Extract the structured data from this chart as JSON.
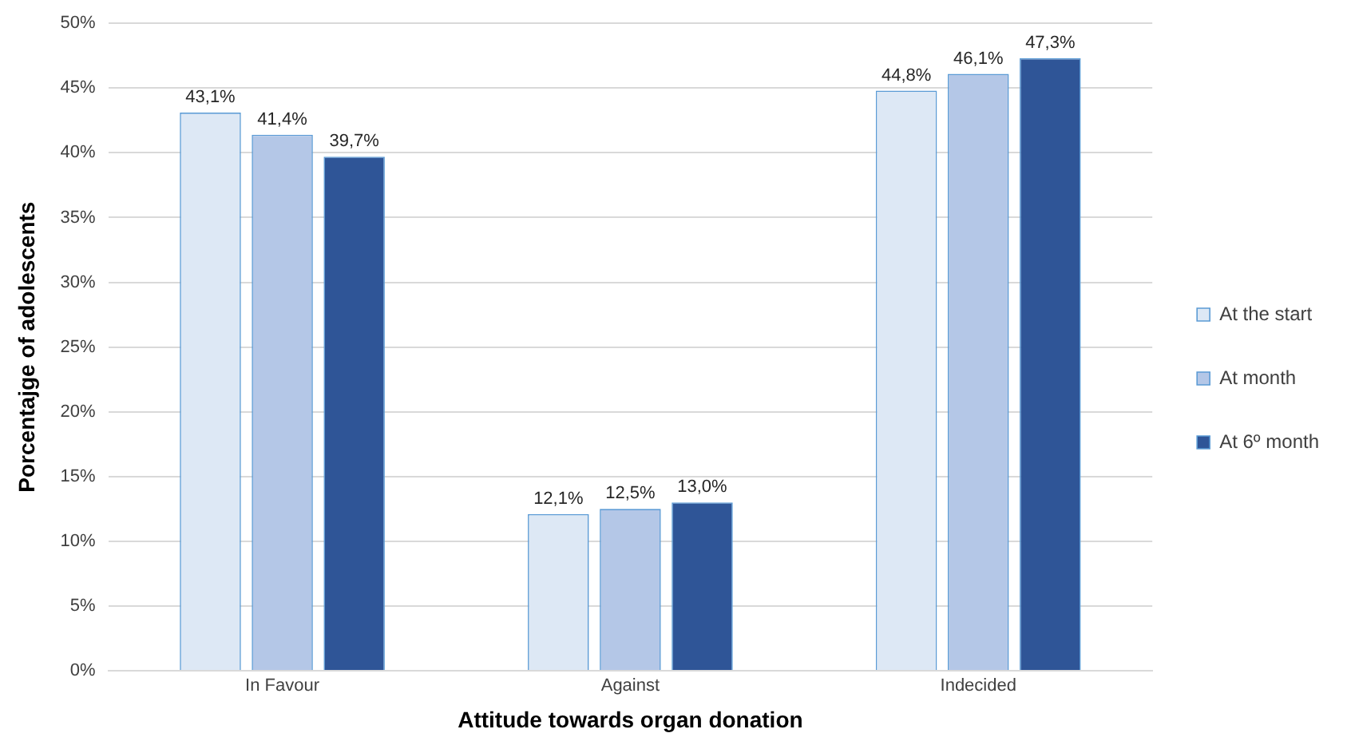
{
  "chart_data": {
    "type": "bar",
    "xlabel": "Attitude towards organ donation",
    "ylabel": "Porcentajge of adolescents",
    "categories": [
      "In Favour",
      "Against",
      "Indecided"
    ],
    "series": [
      {
        "name": "At the start",
        "color": "#dde8f5",
        "values": [
          43.1,
          12.1,
          44.8
        ],
        "value_labels": [
          "43,1%",
          "12,1%",
          "44,8%"
        ]
      },
      {
        "name": "At month",
        "color": "#b4c7e7",
        "values": [
          41.4,
          12.5,
          46.1
        ],
        "value_labels": [
          "41,4%",
          "12,5%",
          "46,1%"
        ]
      },
      {
        "name": "At 6º month",
        "color": "#2f5597",
        "values": [
          39.7,
          13.0,
          47.3
        ],
        "value_labels": [
          "39,7%",
          "13,0%",
          "47,3%"
        ]
      }
    ],
    "ylim": [
      0,
      50
    ],
    "yticks": [
      {
        "value": 0,
        "label": "0%"
      },
      {
        "value": 5,
        "label": "5%"
      },
      {
        "value": 10,
        "label": "10%"
      },
      {
        "value": 15,
        "label": "15%"
      },
      {
        "value": 20,
        "label": "20%"
      },
      {
        "value": 25,
        "label": "25%"
      },
      {
        "value": 30,
        "label": "30%"
      },
      {
        "value": 35,
        "label": "35%"
      },
      {
        "value": 40,
        "label": "40%"
      },
      {
        "value": 45,
        "label": "45%"
      },
      {
        "value": 50,
        "label": "50%"
      }
    ],
    "grid": "y",
    "legend": "right"
  }
}
